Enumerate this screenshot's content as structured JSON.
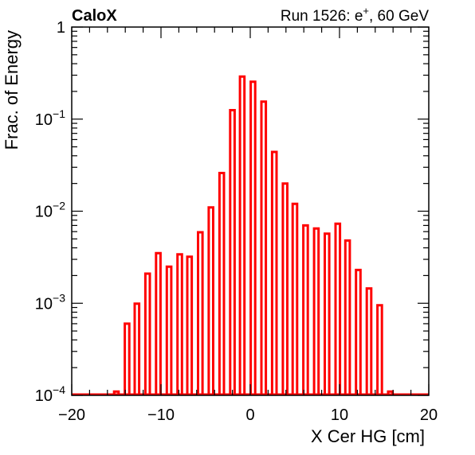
{
  "header": {
    "experiment_label": "CaloX",
    "run_prefix": "Run 1526: e",
    "run_particle_sup": "+",
    "run_suffix": ", 60 GeV"
  },
  "chart_data": {
    "type": "bar",
    "xlabel": "X Cer HG [cm]",
    "ylabel": "Frac. of Energy",
    "xlim": [
      -20,
      20
    ],
    "ylim": [
      0.0001,
      1
    ],
    "log_y": true,
    "grid": false,
    "bar_color": "#ff0000",
    "bar_width": 0.5,
    "x_ticks": [
      {
        "value": -20,
        "label": "−20"
      },
      {
        "value": -10,
        "label": "−10"
      },
      {
        "value": 0,
        "label": "0"
      },
      {
        "value": 10,
        "label": "10"
      },
      {
        "value": 20,
        "label": "20"
      }
    ],
    "y_ticks": [
      {
        "value": 0.0001,
        "base": "10",
        "exp": "−4"
      },
      {
        "value": 0.001,
        "base": "10",
        "exp": "−3"
      },
      {
        "value": 0.01,
        "base": "10",
        "exp": "−2"
      },
      {
        "value": 0.1,
        "base": "10",
        "exp": "−1"
      },
      {
        "value": 1,
        "base": "1",
        "exp": ""
      }
    ],
    "x": [
      -15.0,
      -13.8,
      -12.7,
      -11.5,
      -10.3,
      -9.1,
      -7.9,
      -6.8,
      -5.6,
      -4.4,
      -3.2,
      -2.0,
      -0.9,
      0.3,
      1.5,
      2.7,
      3.9,
      5.0,
      6.2,
      7.4,
      8.6,
      9.8,
      10.9,
      12.1,
      13.3,
      14.5,
      15.7
    ],
    "values": [
      0.00011,
      0.0006,
      0.00099,
      0.0021,
      0.0035,
      0.0025,
      0.0034,
      0.0032,
      0.0059,
      0.011,
      0.026,
      0.125,
      0.29,
      0.255,
      0.155,
      0.044,
      0.02,
      0.012,
      0.007,
      0.0065,
      0.0057,
      0.0073,
      0.0048,
      0.0023,
      0.00145,
      0.00095,
      0.00011
    ]
  }
}
